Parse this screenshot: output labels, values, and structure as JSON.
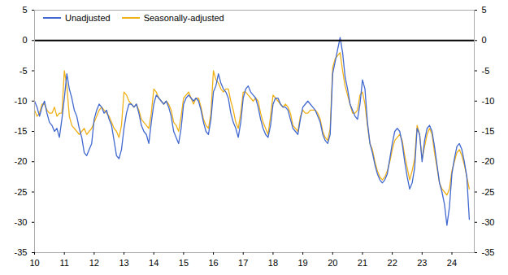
{
  "chart_data": {
    "type": "line",
    "x": [
      2010,
      2010.0833333333,
      2010.1666666667,
      2010.25,
      2010.3333333333,
      2010.4166666667,
      2010.5,
      2010.5833333333,
      2010.6666666667,
      2010.75,
      2010.8333333333,
      2010.9166666667,
      2011,
      2011.0833333333,
      2011.1666666667,
      2011.25,
      2011.3333333333,
      2011.4166666667,
      2011.5,
      2011.5833333333,
      2011.6666666667,
      2011.75,
      2011.8333333333,
      2011.9166666667,
      2012,
      2012.0833333333,
      2012.1666666667,
      2012.25,
      2012.3333333333,
      2012.4166666667,
      2012.5,
      2012.5833333333,
      2012.6666666667,
      2012.75,
      2012.8333333333,
      2012.9166666667,
      2013,
      2013.0833333333,
      2013.1666666667,
      2013.25,
      2013.3333333333,
      2013.4166666667,
      2013.5,
      2013.5833333333,
      2013.6666666667,
      2013.75,
      2013.8333333333,
      2013.9166666667,
      2014,
      2014.0833333333,
      2014.1666666667,
      2014.25,
      2014.3333333333,
      2014.4166666667,
      2014.5,
      2014.5833333333,
      2014.6666666667,
      2014.75,
      2014.8333333333,
      2014.9166666667,
      2015,
      2015.0833333333,
      2015.1666666667,
      2015.25,
      2015.3333333333,
      2015.4166666667,
      2015.5,
      2015.5833333333,
      2015.6666666667,
      2015.75,
      2015.8333333333,
      2015.9166666667,
      2016,
      2016.0833333333,
      2016.1666666667,
      2016.25,
      2016.3333333333,
      2016.4166666667,
      2016.5,
      2016.5833333333,
      2016.6666666667,
      2016.75,
      2016.8333333333,
      2016.9166666667,
      2017,
      2017.0833333333,
      2017.1666666667,
      2017.25,
      2017.3333333333,
      2017.4166666667,
      2017.5,
      2017.5833333333,
      2017.6666666667,
      2017.75,
      2017.8333333333,
      2017.9166666667,
      2018,
      2018.0833333333,
      2018.1666666667,
      2018.25,
      2018.3333333333,
      2018.4166666667,
      2018.5,
      2018.5833333333,
      2018.6666666667,
      2018.75,
      2018.8333333333,
      2018.9166666667,
      2019,
      2019.0833333333,
      2019.1666666667,
      2019.25,
      2019.3333333333,
      2019.4166666667,
      2019.5,
      2019.5833333333,
      2019.6666666667,
      2019.75,
      2019.8333333333,
      2019.9166666667,
      2020,
      2020.0833333333,
      2020.1666666667,
      2020.25,
      2020.3333333333,
      2020.4166666667,
      2020.5,
      2020.5833333333,
      2020.6666666667,
      2020.75,
      2020.8333333333,
      2020.9166666667,
      2021,
      2021.0833333333,
      2021.1666666667,
      2021.25,
      2021.3333333333,
      2021.4166666667,
      2021.5,
      2021.5833333333,
      2021.6666666667,
      2021.75,
      2021.8333333333,
      2021.9166666667,
      2022,
      2022.0833333333,
      2022.1666666667,
      2022.25,
      2022.3333333333,
      2022.4166666667,
      2022.5,
      2022.5833333333,
      2022.6666666667,
      2022.75,
      2022.8333333333,
      2022.9166666667,
      2023,
      2023.0833333333,
      2023.1666666667,
      2023.25,
      2023.3333333333,
      2023.4166666667,
      2023.5,
      2023.5833333333,
      2023.6666666667,
      2023.75,
      2023.8333333333,
      2023.9166666667,
      2024,
      2024.0833333333,
      2024.1666666667,
      2024.25,
      2024.3333333333,
      2024.4166666667,
      2024.5,
      2024.5833333333
    ],
    "series": [
      {
        "name": "Unadjusted",
        "values": [
          -10.0,
          -11.0,
          -12.5,
          -11.0,
          -10.0,
          -12.0,
          -13.5,
          -14.0,
          -15.0,
          -14.5,
          -16.0,
          -13.0,
          -9.5,
          -5.5,
          -8.0,
          -9.5,
          -11.5,
          -12.5,
          -14.5,
          -16.0,
          -18.5,
          -19.0,
          -18.0,
          -17.0,
          -13.0,
          -11.5,
          -10.5,
          -11.0,
          -12.0,
          -11.5,
          -13.0,
          -14.0,
          -16.5,
          -19.0,
          -19.5,
          -18.0,
          -14.5,
          -12.0,
          -10.5,
          -10.5,
          -11.0,
          -10.5,
          -12.0,
          -14.0,
          -15.0,
          -15.5,
          -17.0,
          -13.5,
          -10.5,
          -9.0,
          -9.5,
          -10.0,
          -10.5,
          -10.0,
          -11.0,
          -12.5,
          -15.0,
          -16.0,
          -17.0,
          -14.5,
          -10.5,
          -9.5,
          -9.0,
          -9.5,
          -10.0,
          -9.5,
          -10.0,
          -11.5,
          -13.5,
          -15.0,
          -15.5,
          -13.0,
          -8.5,
          -7.5,
          -5.5,
          -7.0,
          -8.0,
          -8.5,
          -9.5,
          -12.0,
          -13.5,
          -14.5,
          -16.0,
          -13.5,
          -9.5,
          -8.0,
          -7.5,
          -8.5,
          -9.0,
          -9.5,
          -11.0,
          -13.0,
          -14.5,
          -15.5,
          -16.0,
          -14.0,
          -10.5,
          -9.5,
          -9.5,
          -10.5,
          -11.0,
          -11.0,
          -11.5,
          -13.0,
          -14.5,
          -15.0,
          -15.5,
          -13.0,
          -11.0,
          -10.5,
          -10.0,
          -10.5,
          -11.0,
          -11.5,
          -12.5,
          -13.5,
          -15.5,
          -16.5,
          -17.0,
          -15.5,
          -5.5,
          -3.5,
          -1.5,
          0.5,
          -2.0,
          -6.0,
          -8.0,
          -10.5,
          -11.5,
          -12.5,
          -13.0,
          -10.5,
          -6.5,
          -8.0,
          -13.5,
          -17.0,
          -18.5,
          -20.5,
          -22.0,
          -23.0,
          -23.5,
          -23.0,
          -22.0,
          -19.5,
          -17.0,
          -15.0,
          -14.5,
          -15.0,
          -17.0,
          -20.0,
          -22.5,
          -24.5,
          -23.5,
          -21.0,
          -14.5,
          -15.5,
          -20.0,
          -16.5,
          -14.5,
          -14.0,
          -15.0,
          -17.5,
          -20.5,
          -23.5,
          -25.0,
          -27.0,
          -30.5,
          -27.5,
          -22.0,
          -19.5,
          -17.5,
          -17.0,
          -18.0,
          -20.0,
          -22.5,
          -29.5
        ]
      },
      {
        "name": "Seasonally-adjusted",
        "values": [
          -11.5,
          -12.5,
          -12.0,
          -10.5,
          -10.5,
          -11.5,
          -12.0,
          -12.0,
          -11.0,
          -12.5,
          -12.0,
          -12.0,
          -5.0,
          -7.5,
          -12.5,
          -14.0,
          -14.5,
          -15.0,
          -15.5,
          -15.0,
          -14.5,
          -15.5,
          -15.0,
          -14.5,
          -13.5,
          -12.5,
          -11.5,
          -11.0,
          -11.5,
          -12.0,
          -12.5,
          -13.5,
          -14.5,
          -15.0,
          -16.0,
          -14.0,
          -8.5,
          -9.0,
          -10.0,
          -10.5,
          -11.0,
          -10.5,
          -11.5,
          -13.0,
          -13.5,
          -14.0,
          -14.5,
          -12.0,
          -8.0,
          -8.5,
          -9.5,
          -10.0,
          -10.5,
          -10.0,
          -10.5,
          -11.5,
          -13.5,
          -14.0,
          -15.0,
          -12.5,
          -9.5,
          -9.0,
          -8.5,
          -9.5,
          -10.5,
          -9.5,
          -9.5,
          -11.0,
          -13.0,
          -14.0,
          -14.5,
          -12.0,
          -5.0,
          -6.5,
          -7.0,
          -8.0,
          -8.5,
          -8.0,
          -8.0,
          -10.0,
          -11.5,
          -13.5,
          -14.5,
          -12.0,
          -8.5,
          -8.5,
          -9.0,
          -9.5,
          -10.0,
          -9.5,
          -10.0,
          -12.0,
          -13.5,
          -14.5,
          -15.5,
          -12.5,
          -9.0,
          -9.5,
          -10.0,
          -10.5,
          -11.0,
          -10.5,
          -11.0,
          -12.0,
          -14.0,
          -14.5,
          -15.0,
          -12.5,
          -11.5,
          -12.0,
          -12.0,
          -11.5,
          -11.5,
          -11.5,
          -12.0,
          -13.0,
          -15.0,
          -16.0,
          -16.5,
          -14.5,
          -4.5,
          -3.0,
          -2.5,
          -2.0,
          -5.0,
          -7.5,
          -9.0,
          -10.5,
          -12.0,
          -12.0,
          -11.5,
          -9.0,
          -8.5,
          -10.5,
          -14.0,
          -17.0,
          -18.0,
          -20.0,
          -21.5,
          -22.5,
          -23.0,
          -22.5,
          -21.5,
          -20.0,
          -18.0,
          -16.5,
          -16.0,
          -15.5,
          -16.5,
          -19.0,
          -21.0,
          -23.0,
          -21.5,
          -19.5,
          -14.0,
          -15.5,
          -19.5,
          -17.5,
          -15.5,
          -14.5,
          -15.5,
          -18.5,
          -21.0,
          -23.5,
          -24.5,
          -25.0,
          -25.5,
          -24.5,
          -21.5,
          -20.0,
          -18.5,
          -18.0,
          -19.0,
          -20.5,
          -22.5,
          -24.5
        ]
      }
    ],
    "xlim": [
      2010.0,
      2024.75
    ],
    "xticks": [
      {
        "value": 2010,
        "label": "10"
      },
      {
        "value": 2011,
        "label": "11"
      },
      {
        "value": 2012,
        "label": "12"
      },
      {
        "value": 2013,
        "label": "13"
      },
      {
        "value": 2014,
        "label": "14"
      },
      {
        "value": 2015,
        "label": "15"
      },
      {
        "value": 2016,
        "label": "16"
      },
      {
        "value": 2017,
        "label": "17"
      },
      {
        "value": 2018,
        "label": "18"
      },
      {
        "value": 2019,
        "label": "19"
      },
      {
        "value": 2020,
        "label": "20"
      },
      {
        "value": 2021,
        "label": "21"
      },
      {
        "value": 2022,
        "label": "22"
      },
      {
        "value": 2023,
        "label": "23"
      },
      {
        "value": 2024,
        "label": "24"
      }
    ],
    "ylim": [
      -35,
      5
    ],
    "yticks": [
      -35,
      -30,
      -25,
      -20,
      -15,
      -10,
      -5,
      0,
      5
    ],
    "y2lim": [
      -35,
      5
    ],
    "y2ticks": [
      -35,
      -30,
      -25,
      -20,
      -15,
      -10,
      -5,
      0,
      5
    ],
    "grid": false,
    "legend": "upper left"
  }
}
